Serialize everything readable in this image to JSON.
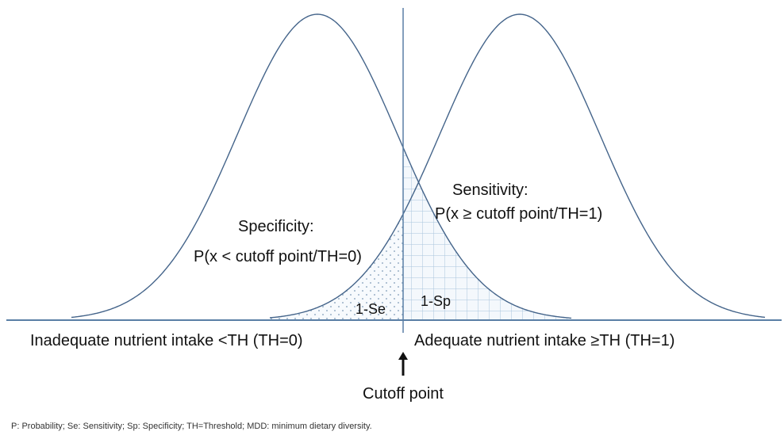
{
  "labels": {
    "specificity": "Specificity:",
    "specificity_formula": "P(x < cutoff point/TH=0)",
    "sensitivity": "Sensitivity:",
    "sensitivity_formula": "P(x ≥ cutoff point/TH=1)",
    "one_minus_se": "1-Se",
    "one_minus_sp": "1-Sp",
    "left_axis": "Inadequate nutrient intake <TH (TH=0)",
    "right_axis": "Adequate nutrient intake ≥TH (TH=1)",
    "cutoff": "Cutoff point"
  },
  "footnote": "P: Probability; Se: Sensitivity; Sp: Specificity; TH=Threshold; MDD: minimum dietary diversity."
}
